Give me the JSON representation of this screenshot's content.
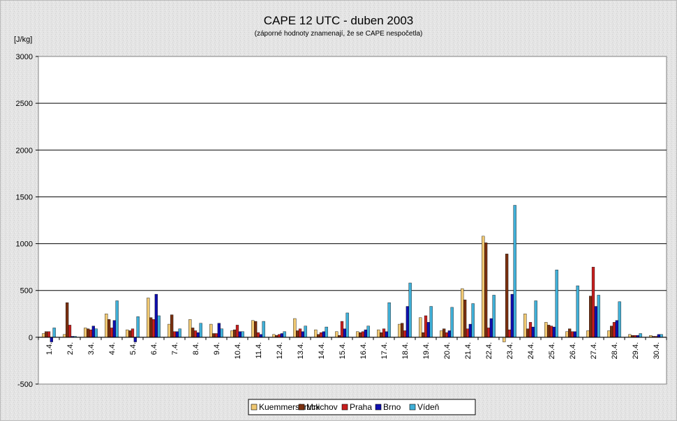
{
  "chart_data": {
    "type": "bar",
    "title": "CAPE 12 UTC - duben 2003",
    "subtitle": "(záporné hodnoty znamenají, že se CAPE nespočetla)",
    "ylabel": "[J/kg]",
    "ylim": [
      -500,
      3000
    ],
    "yticks": [
      "3000",
      "2500",
      "2000",
      "1500",
      "1000",
      "500",
      "0",
      "-500"
    ],
    "grid": true,
    "legend_position": "bottom",
    "categories": [
      "1.4.",
      "2.4.",
      "3.4.",
      "4.4.",
      "5.4.",
      "6.4.",
      "7.4.",
      "8.4.",
      "9.4.",
      "10.4.",
      "11.4.",
      "12.4.",
      "13.4.",
      "14.4.",
      "15.4.",
      "16.4.",
      "17.4.",
      "18.4.",
      "19.4.",
      "20.4.",
      "21.4.",
      "22.4.",
      "23.4.",
      "24.4.",
      "25.4.",
      "26.4.",
      "27.4.",
      "28.4.",
      "29.4.",
      "30.4."
    ],
    "series": [
      {
        "name": "Kuemmersbruck",
        "color": "#f0c872",
        "values": [
          40,
          30,
          100,
          250,
          80,
          420,
          140,
          190,
          140,
          70,
          180,
          30,
          200,
          80,
          60,
          60,
          80,
          140,
          210,
          70,
          520,
          1080,
          -50,
          250,
          160,
          60,
          70,
          70,
          30,
          20
        ]
      },
      {
        "name": "Mnichov",
        "color": "#7a3010",
        "values": [
          60,
          370,
          90,
          190,
          70,
          210,
          240,
          100,
          40,
          80,
          170,
          20,
          70,
          30,
          20,
          50,
          50,
          150,
          50,
          90,
          400,
          1010,
          890,
          90,
          130,
          90,
          440,
          120,
          20,
          10
        ]
      },
      {
        "name": "Praha",
        "color": "#c81e1e",
        "values": [
          60,
          130,
          80,
          100,
          90,
          190,
          60,
          70,
          40,
          130,
          50,
          30,
          90,
          50,
          170,
          60,
          90,
          70,
          230,
          50,
          90,
          100,
          80,
          160,
          120,
          60,
          750,
          160,
          20,
          10
        ]
      },
      {
        "name": "Brno",
        "color": "#1010b0",
        "values": [
          -50,
          10,
          120,
          180,
          -50,
          460,
          60,
          50,
          150,
          60,
          30,
          40,
          60,
          60,
          90,
          80,
          60,
          330,
          160,
          70,
          140,
          200,
          460,
          110,
          110,
          60,
          330,
          180,
          20,
          30
        ]
      },
      {
        "name": "Vídeň",
        "color": "#40b0d8",
        "values": [
          100,
          10,
          90,
          390,
          220,
          230,
          90,
          150,
          90,
          60,
          170,
          60,
          120,
          110,
          260,
          120,
          370,
          580,
          330,
          320,
          360,
          450,
          1410,
          390,
          720,
          550,
          450,
          380,
          40,
          30
        ]
      }
    ]
  }
}
